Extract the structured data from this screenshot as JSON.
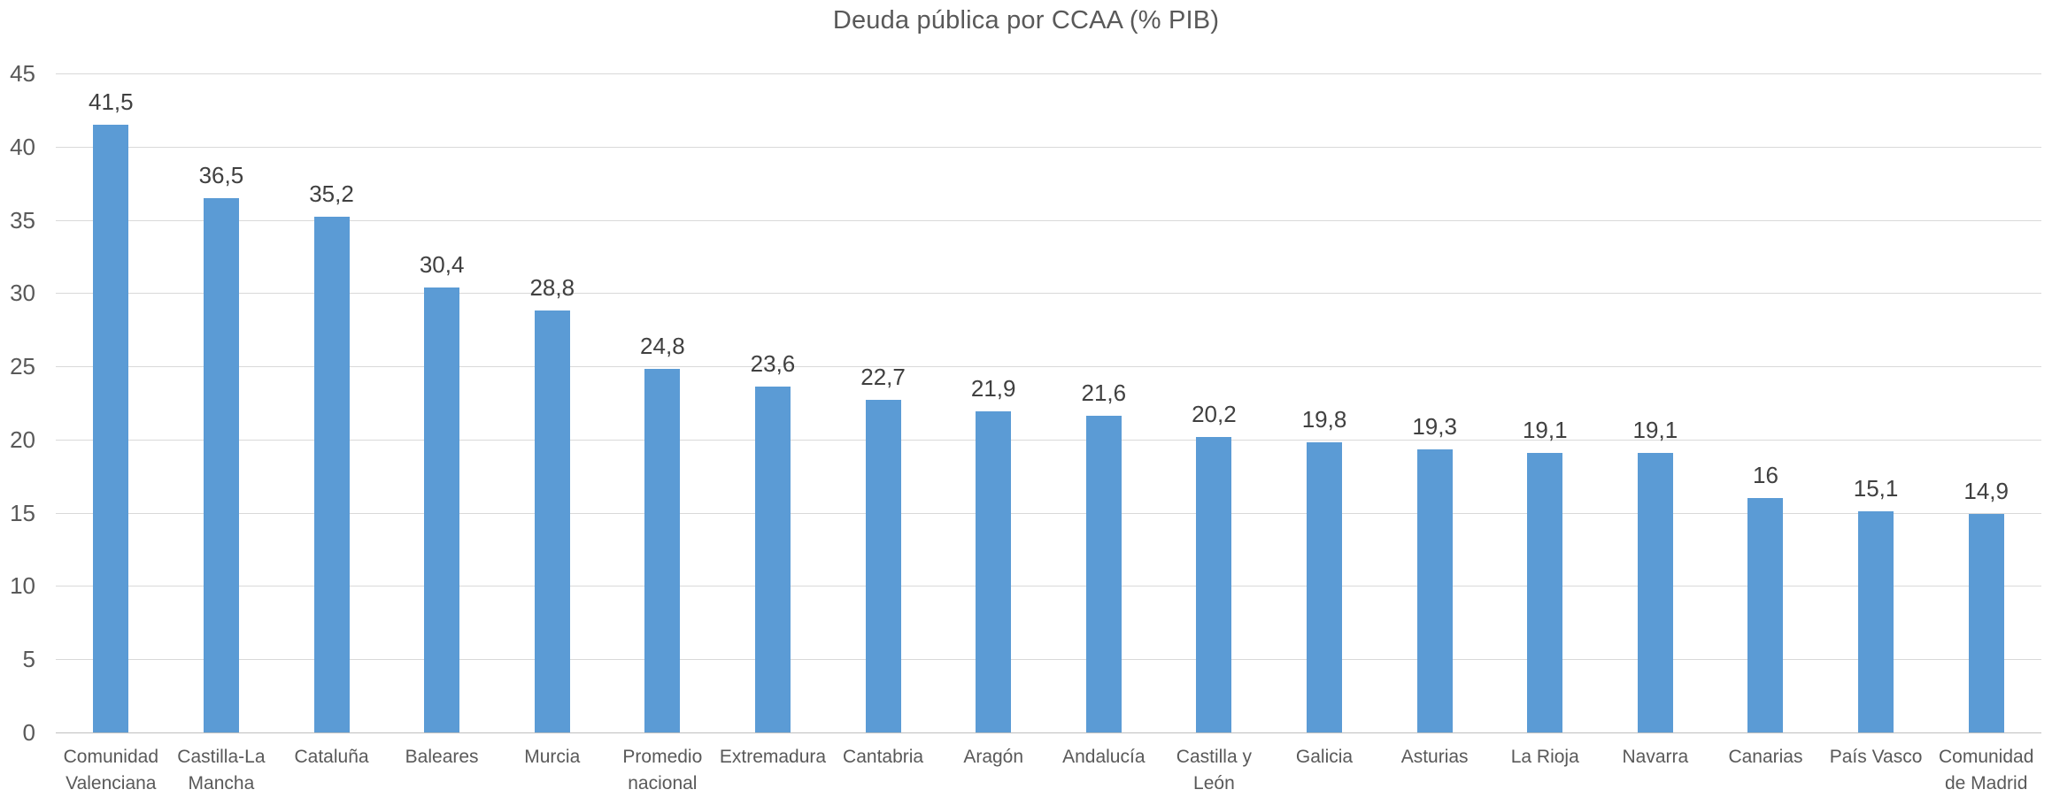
{
  "title": "Deuda pública por CCAA (% PIB)",
  "colors": {
    "bar": "#5b9bd5",
    "gridline": "#d9d9d9",
    "axis_line": "#bfbfbf",
    "title_text": "#595959",
    "axis_text": "#595959",
    "value_text": "#404040",
    "background": "#ffffff"
  },
  "chart_data": {
    "type": "bar",
    "title": "Deuda pública por CCAA (% PIB)",
    "categories": [
      "Comunidad Valenciana",
      "Castilla-La Mancha",
      "Cataluña",
      "Baleares",
      "Murcia",
      "Promedio nacional",
      "Extremadura",
      "Cantabria",
      "Aragón",
      "Andalucía",
      "Castilla y León",
      "Galicia",
      "Asturias",
      "La Rioja",
      "Navarra",
      "Canarias",
      "País Vasco",
      "Comunidad de Madrid"
    ],
    "category_display": [
      "Comunidad\nValenciana",
      "Castilla-La\nMancha",
      "Cataluña",
      "Baleares",
      "Murcia",
      "Promedio\nnacional",
      "Extremadura",
      "Cantabria",
      "Aragón",
      "Andalucía",
      "Castilla y\nLeón",
      "Galicia",
      "Asturias",
      "La Rioja",
      "Navarra",
      "Canarias",
      "País Vasco",
      "Comunidad\nde Madrid"
    ],
    "values": [
      41.5,
      36.5,
      35.2,
      30.4,
      28.8,
      24.8,
      23.6,
      22.7,
      21.9,
      21.6,
      20.2,
      19.8,
      19.3,
      19.1,
      19.1,
      16,
      15.1,
      14.9
    ],
    "value_labels": [
      "41,5",
      "36,5",
      "35,2",
      "30,4",
      "28,8",
      "24,8",
      "23,6",
      "22,7",
      "21,9",
      "21,6",
      "20,2",
      "19,8",
      "19,3",
      "19,1",
      "19,1",
      "16",
      "15,1",
      "14,9"
    ],
    "xlabel": "",
    "ylabel": "",
    "ylim": [
      0,
      45
    ],
    "yticks": [
      0,
      5,
      10,
      15,
      20,
      25,
      30,
      35,
      40,
      45
    ],
    "grid": true,
    "legend": false,
    "decimal_separator": ","
  }
}
